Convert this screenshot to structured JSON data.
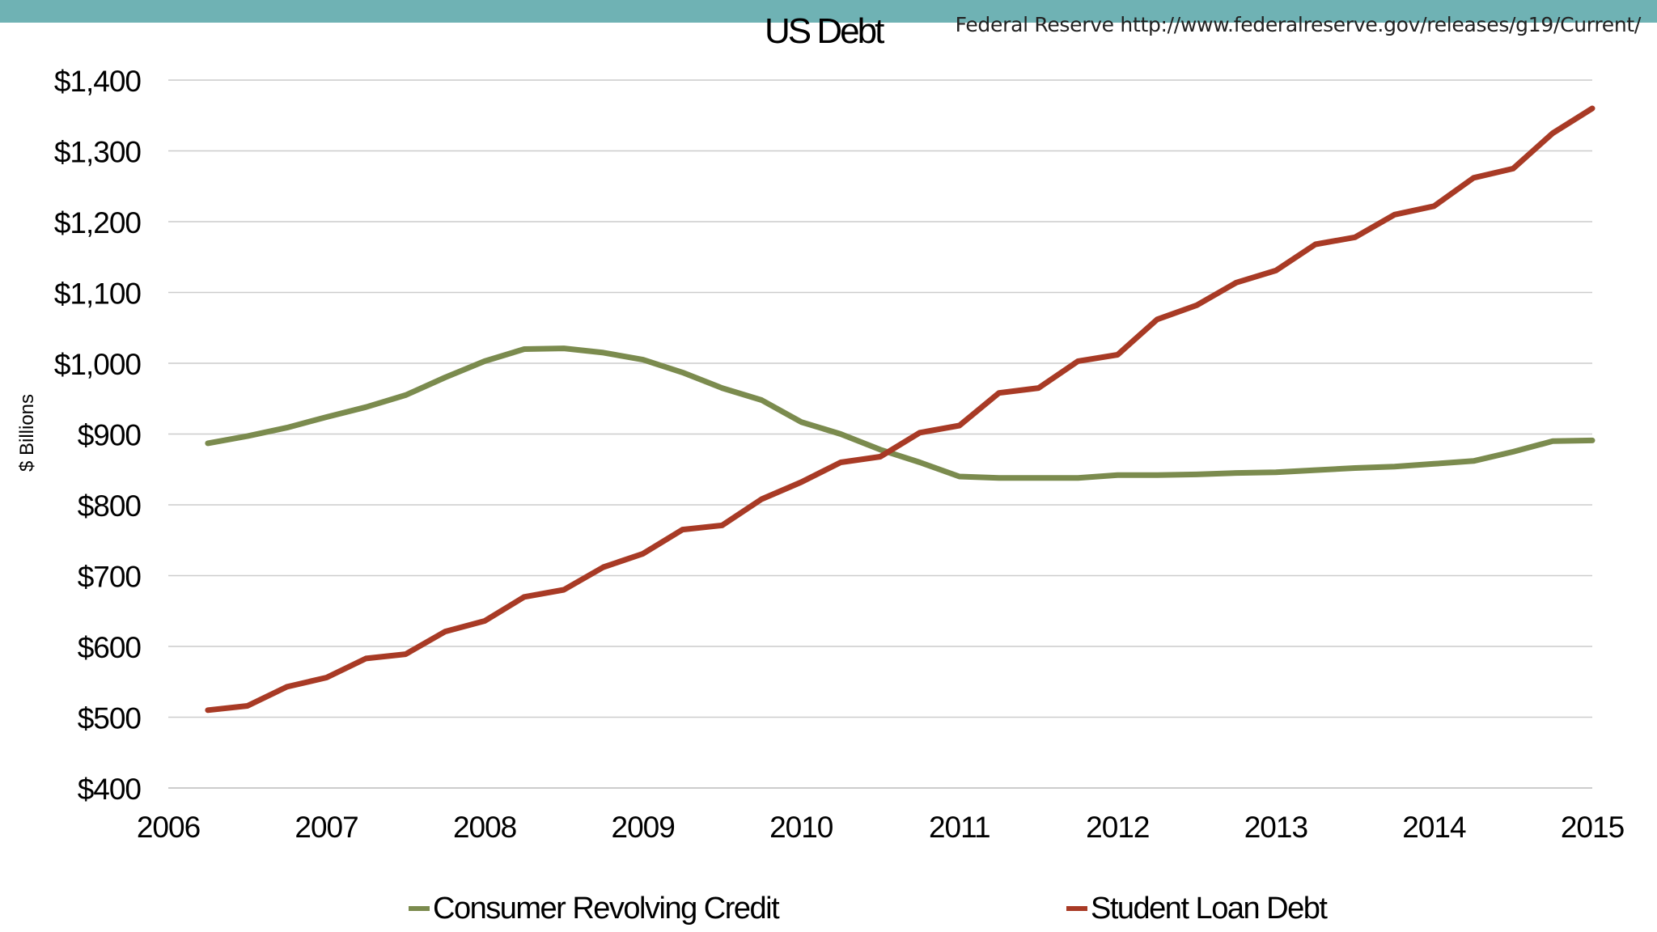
{
  "colors": {
    "banner": "#6fb2b4",
    "consumer": "#7b8b4e",
    "student": "#a83a25",
    "grid": "#cccccc"
  },
  "header": {
    "title": "US Debt",
    "source": "Federal Reserve http://www.federalreserve.gov/releases/g19/Current/"
  },
  "chart_data": {
    "type": "line",
    "title": "US Debt",
    "xlabel": "",
    "ylabel": "$ Billions",
    "xlim": [
      2006,
      2015
    ],
    "ylim": [
      400,
      1400
    ],
    "x_ticks": [
      "2006",
      "2007",
      "2008",
      "2009",
      "2010",
      "2011",
      "2012",
      "2013",
      "2014",
      "2015"
    ],
    "y_ticks": [
      "$400",
      "$500",
      "$600",
      "$700",
      "$800",
      "$900",
      "$1,000",
      "$1,100",
      "$1,200",
      "$1,300",
      "$1,400"
    ],
    "grid": true,
    "legend_position": "bottom",
    "x": [
      2006.25,
      2006.5,
      2006.75,
      2007,
      2007.25,
      2007.5,
      2007.75,
      2008,
      2008.25,
      2008.5,
      2008.75,
      2009,
      2009.25,
      2009.5,
      2009.75,
      2010,
      2010.25,
      2010.5,
      2010.75,
      2011,
      2011.25,
      2011.5,
      2011.75,
      2012,
      2012.25,
      2012.5,
      2012.75,
      2013,
      2013.25,
      2013.5,
      2013.75,
      2014,
      2014.25,
      2014.5,
      2014.75,
      2015
    ],
    "series": [
      {
        "name": "Consumer Revolving Credit",
        "color": "#7b8b4e",
        "values": [
          887,
          897,
          909,
          924,
          938,
          955,
          980,
          1003,
          1020,
          1021,
          1015,
          1005,
          987,
          965,
          948,
          917,
          900,
          878,
          860,
          840,
          838,
          838,
          838,
          842,
          842,
          843,
          845,
          846,
          849,
          852,
          854,
          858,
          862,
          875,
          890,
          891
        ]
      },
      {
        "name": "Student Loan Debt",
        "color": "#a83a25",
        "values": [
          510,
          516,
          543,
          556,
          583,
          589,
          621,
          636,
          670,
          680,
          712,
          731,
          765,
          771,
          808,
          832,
          860,
          868,
          902,
          912,
          958,
          965,
          1003,
          1012,
          1062,
          1082,
          1114,
          1131,
          1168,
          1178,
          1210,
          1222,
          1262,
          1275,
          1325,
          1360
        ]
      }
    ]
  }
}
